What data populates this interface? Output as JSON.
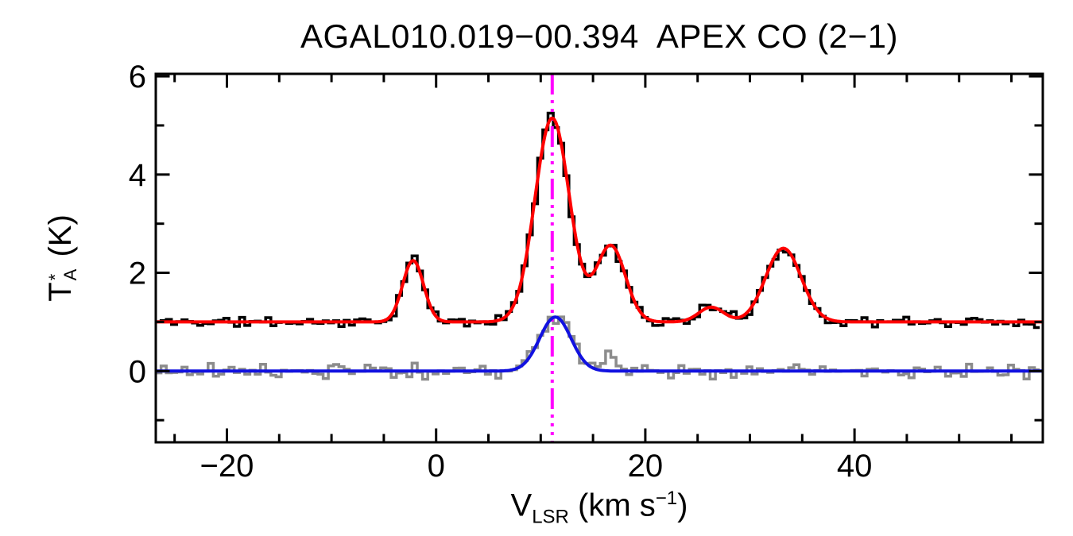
{
  "figure": {
    "title": "AGAL010.019−00.394  APEX CO (2−1)"
  },
  "axes": {
    "xlabel": {
      "symbol": "V",
      "subscript": "LSR",
      "unit_prefix": " (km s",
      "unit_exponent": "−1",
      "unit_suffix": ")",
      "plain": "V_LSR (km s^-1)"
    },
    "ylabel": {
      "symbol": "T",
      "superscript": "*",
      "subscript": "A",
      "unit": " (K)",
      "plain": "T_A^* (K)"
    }
  },
  "chart_data": {
    "type": "line",
    "title": "AGAL010.019−00.394  APEX CO (2−1)",
    "xlabel": "V_LSR (km s^-1)",
    "ylabel": "T_A^* (K)",
    "xlim": [
      -26.8,
      58.0
    ],
    "ylim": [
      -1.45,
      6.05
    ],
    "x_major_ticks": [
      -20,
      0,
      20,
      40
    ],
    "x_tick_labels": [
      "−20",
      "0",
      "20",
      "40"
    ],
    "x_minor_tick_step": 5,
    "y_major_ticks": [
      0,
      2,
      4,
      6
    ],
    "y_tick_labels": [
      "0",
      "2",
      "4",
      "6"
    ],
    "y_minor_tick_step": 1,
    "grid": false,
    "legend": "none",
    "bin_width_kms": 0.5,
    "noise_seed": 11,
    "colors": {
      "data": "#000000",
      "data_fit": "#ff0000",
      "reference": "#8c8c8c",
      "reference_fit": "#1111e0",
      "vline": "#ff00ff",
      "frame": "#000000"
    },
    "series": [
      {
        "id": "co21-spectrum",
        "style": "histogram",
        "color_key": "data",
        "baseline_K": 1.0,
        "noise_amp_K": 0.13,
        "gaussians": [
          {
            "center_kms": -2.2,
            "amplitude_K": 1.25,
            "sigma_kms": 1.0
          },
          {
            "center_kms": 11.1,
            "amplitude_K": 4.15,
            "sigma_kms": 1.65
          },
          {
            "center_kms": 16.7,
            "amplitude_K": 1.55,
            "sigma_kms": 1.4
          },
          {
            "center_kms": 26.3,
            "amplitude_K": 0.3,
            "sigma_kms": 1.2
          },
          {
            "center_kms": 33.2,
            "amplitude_K": 1.5,
            "sigma_kms": 1.7
          }
        ]
      },
      {
        "id": "co21-gaussian-fit",
        "style": "curve",
        "color_key": "data_fit",
        "baseline_K": 1.0,
        "gaussians": [
          {
            "center_kms": -2.2,
            "amplitude_K": 1.25,
            "sigma_kms": 1.0
          },
          {
            "center_kms": 11.1,
            "amplitude_K": 4.15,
            "sigma_kms": 1.65
          },
          {
            "center_kms": 16.7,
            "amplitude_K": 1.55,
            "sigma_kms": 1.4
          },
          {
            "center_kms": 26.3,
            "amplitude_K": 0.3,
            "sigma_kms": 1.2
          },
          {
            "center_kms": 33.2,
            "amplitude_K": 1.5,
            "sigma_kms": 1.7
          }
        ]
      },
      {
        "id": "reference-spectrum",
        "style": "histogram",
        "color_key": "reference",
        "baseline_K": 0.0,
        "noise_amp_K": 0.18,
        "gaussians": [
          {
            "center_kms": 11.4,
            "amplitude_K": 1.1,
            "sigma_kms": 1.5
          },
          {
            "center_kms": 16.5,
            "amplitude_K": 0.25,
            "sigma_kms": 1.0
          },
          {
            "center_kms": 33.2,
            "amplitude_K": 0.1,
            "sigma_kms": 1.5
          }
        ]
      },
      {
        "id": "reference-gaussian-fit",
        "style": "curve",
        "color_key": "reference_fit",
        "baseline_K": 0.0,
        "gaussians": [
          {
            "center_kms": 11.4,
            "amplitude_K": 1.1,
            "sigma_kms": 1.5
          }
        ]
      }
    ],
    "vline": {
      "x_kms": 11.1,
      "color_key": "vline",
      "style": "dash-dot-dot-dot"
    }
  }
}
